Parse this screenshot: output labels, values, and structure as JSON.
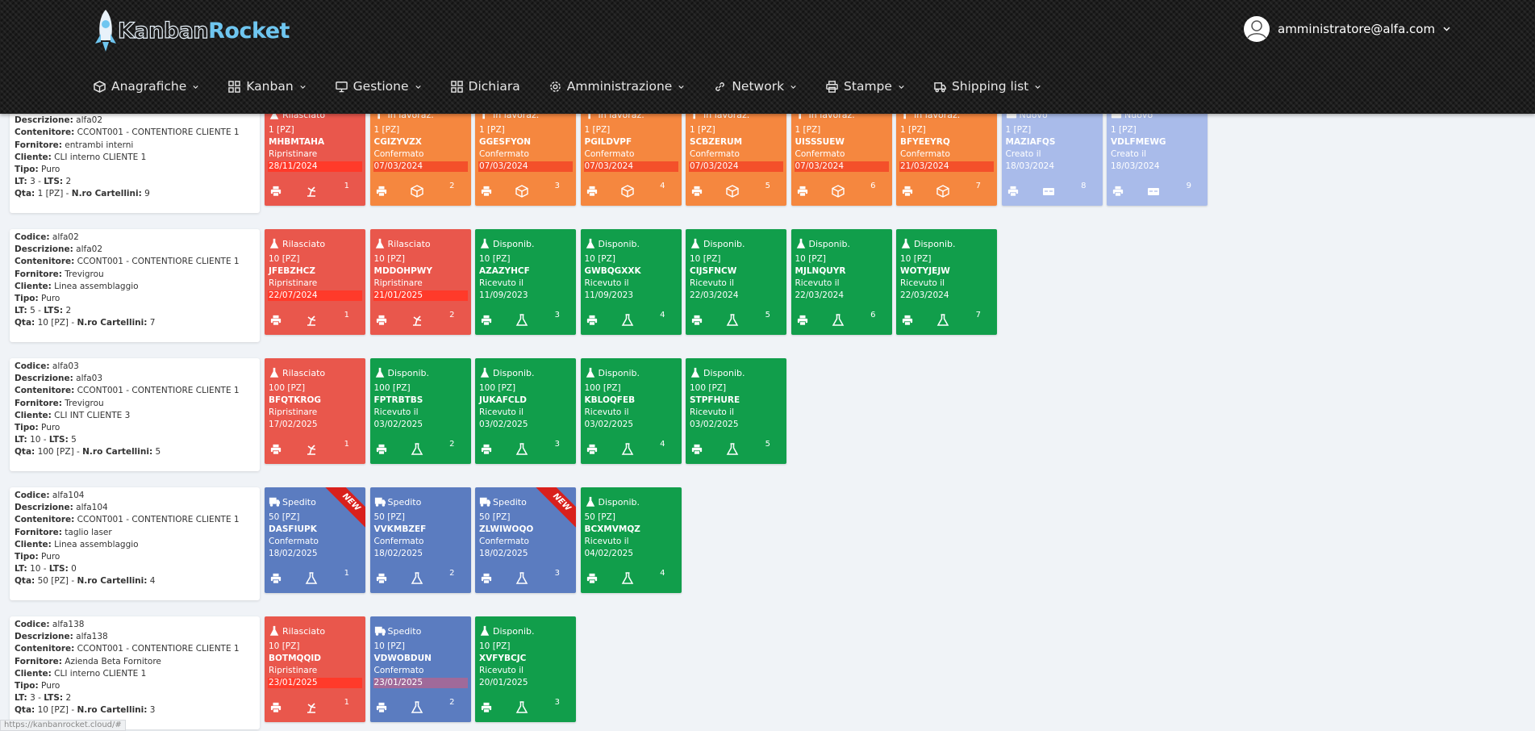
{
  "header": {
    "logo": [
      "Kanban",
      "Rocket"
    ],
    "user": "amministratore@alfa.com",
    "nav": [
      {
        "label": "Anagrafiche",
        "icon": "cube",
        "caret": true
      },
      {
        "label": "Kanban",
        "icon": "grid",
        "caret": true
      },
      {
        "label": "Gestione",
        "icon": "monitor",
        "caret": true
      },
      {
        "label": "Dichiara",
        "icon": "grid",
        "caret": false
      },
      {
        "label": "Amministrazione",
        "icon": "gear",
        "caret": true
      },
      {
        "label": "Network",
        "icon": "link",
        "caret": true
      },
      {
        "label": "Stampe",
        "icon": "printer",
        "caret": true
      },
      {
        "label": "Shipping list",
        "icon": "truck",
        "caret": true
      }
    ]
  },
  "rows": [
    {
      "info": [
        [
          {
            "t": "Descrizione:",
            "b": true
          },
          {
            "t": " alfa02"
          }
        ],
        [
          {
            "t": "Contenitore:",
            "b": true
          },
          {
            "t": " CCONT001 - CONTENTIORE CLIENTE 1"
          }
        ],
        [
          {
            "t": "Fornitore:",
            "b": true
          },
          {
            "t": " entrambi interni"
          }
        ],
        [
          {
            "t": "Cliente:",
            "b": true
          },
          {
            "t": " CLI interno CLIENTE 1"
          }
        ],
        [
          {
            "t": "Tipo:",
            "b": true
          },
          {
            "t": " Puro"
          }
        ],
        [
          {
            "t": "LT:",
            "b": true
          },
          {
            "t": " 3 - "
          },
          {
            "t": "LTS:",
            "b": true
          },
          {
            "t": " 2"
          }
        ],
        [
          {
            "t": "Qta:",
            "b": true
          },
          {
            "t": " 1 [PZ] - "
          },
          {
            "t": "N.ro Cartellini:",
            "b": true
          },
          {
            "t": " 9"
          }
        ]
      ],
      "cards": [
        {
          "status": "Rilasciato",
          "icon": "flask",
          "qty": "1 [PZ]",
          "code": "MHBMTAHA",
          "state": "Ripristinare",
          "date": "28/11/2024",
          "num": 1,
          "color": "#e9574c",
          "highlight": "#ff3a2a",
          "icon2": "reset"
        },
        {
          "status": "In lavoraz.",
          "icon": "hammer",
          "qty": "1 [PZ]",
          "code": "CGIZYVZX",
          "state": "Confermato",
          "date": "07/03/2024",
          "num": 2,
          "color": "#f5873f",
          "highlight": "#f4502a",
          "icon2": "box"
        },
        {
          "status": "In lavoraz.",
          "icon": "hammer",
          "qty": "1 [PZ]",
          "code": "GGESFYON",
          "state": "Confermato",
          "date": "07/03/2024",
          "num": 3,
          "color": "#f5873f",
          "highlight": "#f4502a",
          "icon2": "box"
        },
        {
          "status": "In lavoraz.",
          "icon": "hammer",
          "qty": "1 [PZ]",
          "code": "PGILDVPF",
          "state": "Confermato",
          "date": "07/03/2024",
          "num": 4,
          "color": "#f5873f",
          "highlight": "#f4502a",
          "icon2": "box"
        },
        {
          "status": "In lavoraz.",
          "icon": "hammer",
          "qty": "1 [PZ]",
          "code": "SCBZERUM",
          "state": "Confermato",
          "date": "07/03/2024",
          "num": 5,
          "color": "#f5873f",
          "highlight": "#f4502a",
          "icon2": "box"
        },
        {
          "status": "In lavoraz.",
          "icon": "hammer",
          "qty": "1 [PZ]",
          "code": "UISSSUEW",
          "state": "Confermato",
          "date": "07/03/2024",
          "num": 6,
          "color": "#f5873f",
          "highlight": "#f4502a",
          "icon2": "box"
        },
        {
          "status": "In lavoraz.",
          "icon": "hammer",
          "qty": "1 [PZ]",
          "code": "BFYEEYRQ",
          "state": "Confermato",
          "date": "21/03/2024",
          "num": 7,
          "color": "#f5873f",
          "highlight": "#f4502a",
          "icon2": "box"
        },
        {
          "status": "Nuovo",
          "icon": "card",
          "qty": "1 [PZ]",
          "code": "MAZIAFQS",
          "state": "Creato il",
          "date": "18/03/2024",
          "num": 8,
          "color": "#a9bbea",
          "highlight": null,
          "icon2": "card"
        },
        {
          "status": "Nuovo",
          "icon": "card",
          "qty": "1 [PZ]",
          "code": "VDLFMEWG",
          "state": "Creato il",
          "date": "18/03/2024",
          "num": 9,
          "color": "#a9bbea",
          "highlight": null,
          "icon2": "card"
        }
      ]
    },
    {
      "info": [
        [
          {
            "t": "Codice:",
            "b": true
          },
          {
            "t": " alfa02"
          }
        ],
        [
          {
            "t": "Descrizione:",
            "b": true
          },
          {
            "t": " alfa02"
          }
        ],
        [
          {
            "t": "Contenitore:",
            "b": true
          },
          {
            "t": " CCONT001 - CONTENTIORE CLIENTE 1"
          }
        ],
        [
          {
            "t": "Fornitore:",
            "b": true
          },
          {
            "t": " Trevigrou"
          }
        ],
        [
          {
            "t": "Cliente:",
            "b": true
          },
          {
            "t": " Linea assemblaggio"
          }
        ],
        [
          {
            "t": "Tipo:",
            "b": true
          },
          {
            "t": " Puro"
          }
        ],
        [
          {
            "t": "LT:",
            "b": true
          },
          {
            "t": " 5 - "
          },
          {
            "t": "LTS:",
            "b": true
          },
          {
            "t": " 2"
          }
        ],
        [
          {
            "t": "Qta:",
            "b": true
          },
          {
            "t": " 10 [PZ] - "
          },
          {
            "t": "N.ro Cartellini:",
            "b": true
          },
          {
            "t": " 7"
          }
        ]
      ],
      "cards": [
        {
          "status": "Rilasciato",
          "icon": "flask",
          "qty": "10 [PZ]",
          "code": "JFEBZHCZ",
          "state": "Ripristinare",
          "date": "22/07/2024",
          "num": 1,
          "color": "#e9574c",
          "highlight": "#ff3a2a",
          "icon2": "reset"
        },
        {
          "status": "Rilasciato",
          "icon": "flask",
          "qty": "10 [PZ]",
          "code": "MDDOHPWY",
          "state": "Ripristinare",
          "date": "21/01/2025",
          "num": 2,
          "color": "#e9574c",
          "highlight": "#ff3a2a",
          "icon2": "reset"
        },
        {
          "status": "Disponib.",
          "icon": "flask",
          "qty": "10 [PZ]",
          "code": "AZAZYHCF",
          "state": "Ricevuto il",
          "date": "11/09/2023",
          "num": 3,
          "color": "#119e4b",
          "highlight": null,
          "icon2": "flask"
        },
        {
          "status": "Disponib.",
          "icon": "flask",
          "qty": "10 [PZ]",
          "code": "GWBQGXXK",
          "state": "Ricevuto il",
          "date": "11/09/2023",
          "num": 4,
          "color": "#119e4b",
          "highlight": null,
          "icon2": "flask"
        },
        {
          "status": "Disponib.",
          "icon": "flask",
          "qty": "10 [PZ]",
          "code": "CIJSFNCW",
          "state": "Ricevuto il",
          "date": "22/03/2024",
          "num": 5,
          "color": "#119e4b",
          "highlight": null,
          "icon2": "flask"
        },
        {
          "status": "Disponib.",
          "icon": "flask",
          "qty": "10 [PZ]",
          "code": "MJLNQUYR",
          "state": "Ricevuto il",
          "date": "22/03/2024",
          "num": 6,
          "color": "#119e4b",
          "highlight": null,
          "icon2": "flask"
        },
        {
          "status": "Disponib.",
          "icon": "flask",
          "qty": "10 [PZ]",
          "code": "WOTYJEJW",
          "state": "Ricevuto il",
          "date": "22/03/2024",
          "num": 7,
          "color": "#119e4b",
          "highlight": null,
          "icon2": "flask"
        }
      ]
    },
    {
      "info": [
        [
          {
            "t": "Codice:",
            "b": true
          },
          {
            "t": " alfa03"
          }
        ],
        [
          {
            "t": "Descrizione:",
            "b": true
          },
          {
            "t": " alfa03"
          }
        ],
        [
          {
            "t": "Contenitore:",
            "b": true
          },
          {
            "t": " CCONT001 - CONTENTIORE CLIENTE 1"
          }
        ],
        [
          {
            "t": "Fornitore:",
            "b": true
          },
          {
            "t": " Trevigrou"
          }
        ],
        [
          {
            "t": "Cliente:",
            "b": true
          },
          {
            "t": " CLI INT CLIENTE 3"
          }
        ],
        [
          {
            "t": "Tipo:",
            "b": true
          },
          {
            "t": " Puro"
          }
        ],
        [
          {
            "t": "LT:",
            "b": true
          },
          {
            "t": " 10 - "
          },
          {
            "t": "LTS:",
            "b": true
          },
          {
            "t": " 5"
          }
        ],
        [
          {
            "t": "Qta:",
            "b": true
          },
          {
            "t": " 100 [PZ] - "
          },
          {
            "t": "N.ro Cartellini:",
            "b": true
          },
          {
            "t": " 5"
          }
        ]
      ],
      "cards": [
        {
          "status": "Rilasciato",
          "icon": "flask",
          "qty": "100 [PZ]",
          "code": "BFQTKROG",
          "state": "Ripristinare",
          "date": "17/02/2025",
          "num": 1,
          "color": "#e9574c",
          "highlight": null,
          "icon2": "reset"
        },
        {
          "status": "Disponib.",
          "icon": "flask",
          "qty": "100 [PZ]",
          "code": "FPTRBTBS",
          "state": "Ricevuto il",
          "date": "03/02/2025",
          "num": 2,
          "color": "#119e4b",
          "highlight": null,
          "icon2": "flask"
        },
        {
          "status": "Disponib.",
          "icon": "flask",
          "qty": "100 [PZ]",
          "code": "JUKAFCLD",
          "state": "Ricevuto il",
          "date": "03/02/2025",
          "num": 3,
          "color": "#119e4b",
          "highlight": null,
          "icon2": "flask"
        },
        {
          "status": "Disponib.",
          "icon": "flask",
          "qty": "100 [PZ]",
          "code": "KBLOQFEB",
          "state": "Ricevuto il",
          "date": "03/02/2025",
          "num": 4,
          "color": "#119e4b",
          "highlight": null,
          "icon2": "flask"
        },
        {
          "status": "Disponib.",
          "icon": "flask",
          "qty": "100 [PZ]",
          "code": "STPFHURE",
          "state": "Ricevuto il",
          "date": "03/02/2025",
          "num": 5,
          "color": "#119e4b",
          "highlight": null,
          "icon2": "flask"
        }
      ]
    },
    {
      "info": [
        [
          {
            "t": "Codice:",
            "b": true
          },
          {
            "t": " alfa104"
          }
        ],
        [
          {
            "t": "Descrizione:",
            "b": true
          },
          {
            "t": " alfa104"
          }
        ],
        [
          {
            "t": "Contenitore:",
            "b": true
          },
          {
            "t": " CCONT001 - CONTENTIORE CLIENTE 1"
          }
        ],
        [
          {
            "t": "Fornitore:",
            "b": true
          },
          {
            "t": " taglio laser"
          }
        ],
        [
          {
            "t": "Cliente:",
            "b": true
          },
          {
            "t": " Linea assemblaggio"
          }
        ],
        [
          {
            "t": "Tipo:",
            "b": true
          },
          {
            "t": " Puro"
          }
        ],
        [
          {
            "t": "LT:",
            "b": true
          },
          {
            "t": " 10 - "
          },
          {
            "t": "LTS:",
            "b": true
          },
          {
            "t": " 0"
          }
        ],
        [
          {
            "t": "Qta:",
            "b": true
          },
          {
            "t": " 50 [PZ] - "
          },
          {
            "t": "N.ro Cartellini:",
            "b": true
          },
          {
            "t": " 4"
          }
        ]
      ],
      "cards": [
        {
          "status": "Spedito",
          "icon": "truck",
          "qty": "50 [PZ]",
          "code": "DASFIUPK",
          "state": "Confermato",
          "date": "18/02/2025",
          "num": 1,
          "color": "#5b7cc0",
          "highlight": null,
          "icon2": "flask",
          "badge": "NEW"
        },
        {
          "status": "Spedito",
          "icon": "truck",
          "qty": "50 [PZ]",
          "code": "VVKMBZEF",
          "state": "Confermato",
          "date": "18/02/2025",
          "num": 2,
          "color": "#5b7cc0",
          "highlight": null,
          "icon2": "flask"
        },
        {
          "status": "Spedito",
          "icon": "truck",
          "qty": "50 [PZ]",
          "code": "ZLWIWOQO",
          "state": "Confermato",
          "date": "18/02/2025",
          "num": 3,
          "color": "#5b7cc0",
          "highlight": null,
          "icon2": "flask",
          "badge": "NEW"
        },
        {
          "status": "Disponib.",
          "icon": "flask",
          "qty": "50 [PZ]",
          "code": "BCXMVMQZ",
          "state": "Ricevuto il",
          "date": "04/02/2025",
          "num": 4,
          "color": "#119e4b",
          "highlight": null,
          "icon2": "flask"
        }
      ]
    },
    {
      "info": [
        [
          {
            "t": "Codice:",
            "b": true
          },
          {
            "t": " alfa138"
          }
        ],
        [
          {
            "t": "Descrizione:",
            "b": true
          },
          {
            "t": " alfa138"
          }
        ],
        [
          {
            "t": "Contenitore:",
            "b": true
          },
          {
            "t": " CCONT001 - CONTENTIORE CLIENTE 1"
          }
        ],
        [
          {
            "t": "Fornitore:",
            "b": true
          },
          {
            "t": " Azienda Beta Fornitore"
          }
        ],
        [
          {
            "t": "Cliente:",
            "b": true
          },
          {
            "t": " CLI interno CLIENTE 1"
          }
        ],
        [
          {
            "t": "Tipo:",
            "b": true
          },
          {
            "t": " Puro"
          }
        ],
        [
          {
            "t": "LT:",
            "b": true
          },
          {
            "t": " 3 - "
          },
          {
            "t": "LTS:",
            "b": true
          },
          {
            "t": " 2"
          }
        ],
        [
          {
            "t": "Qta:",
            "b": true
          },
          {
            "t": " 10 [PZ] - "
          },
          {
            "t": "N.ro Cartellini:",
            "b": true
          },
          {
            "t": " 3"
          }
        ]
      ],
      "cards": [
        {
          "status": "Rilasciato",
          "icon": "flask",
          "qty": "10 [PZ]",
          "code": "BOTMQQID",
          "state": "Ripristinare",
          "date": "23/01/2025",
          "num": 1,
          "color": "#e9574c",
          "highlight": "#ff3a2a",
          "icon2": "reset"
        },
        {
          "status": "Spedito",
          "icon": "truck",
          "qty": "10 [PZ]",
          "code": "VDWOBDUN",
          "state": "Confermato",
          "date": "23/01/2025",
          "num": 2,
          "color": "#5b7cc0",
          "highlight": "#a06a9a",
          "icon2": "flask"
        },
        {
          "status": "Disponib.",
          "icon": "flask",
          "qty": "10 [PZ]",
          "code": "XVFYBCJC",
          "state": "Ricevuto il",
          "date": "20/01/2025",
          "num": 3,
          "color": "#119e4b",
          "highlight": null,
          "icon2": "flask"
        }
      ]
    }
  ],
  "status_bar": "https://kanbanrocket.cloud/#"
}
